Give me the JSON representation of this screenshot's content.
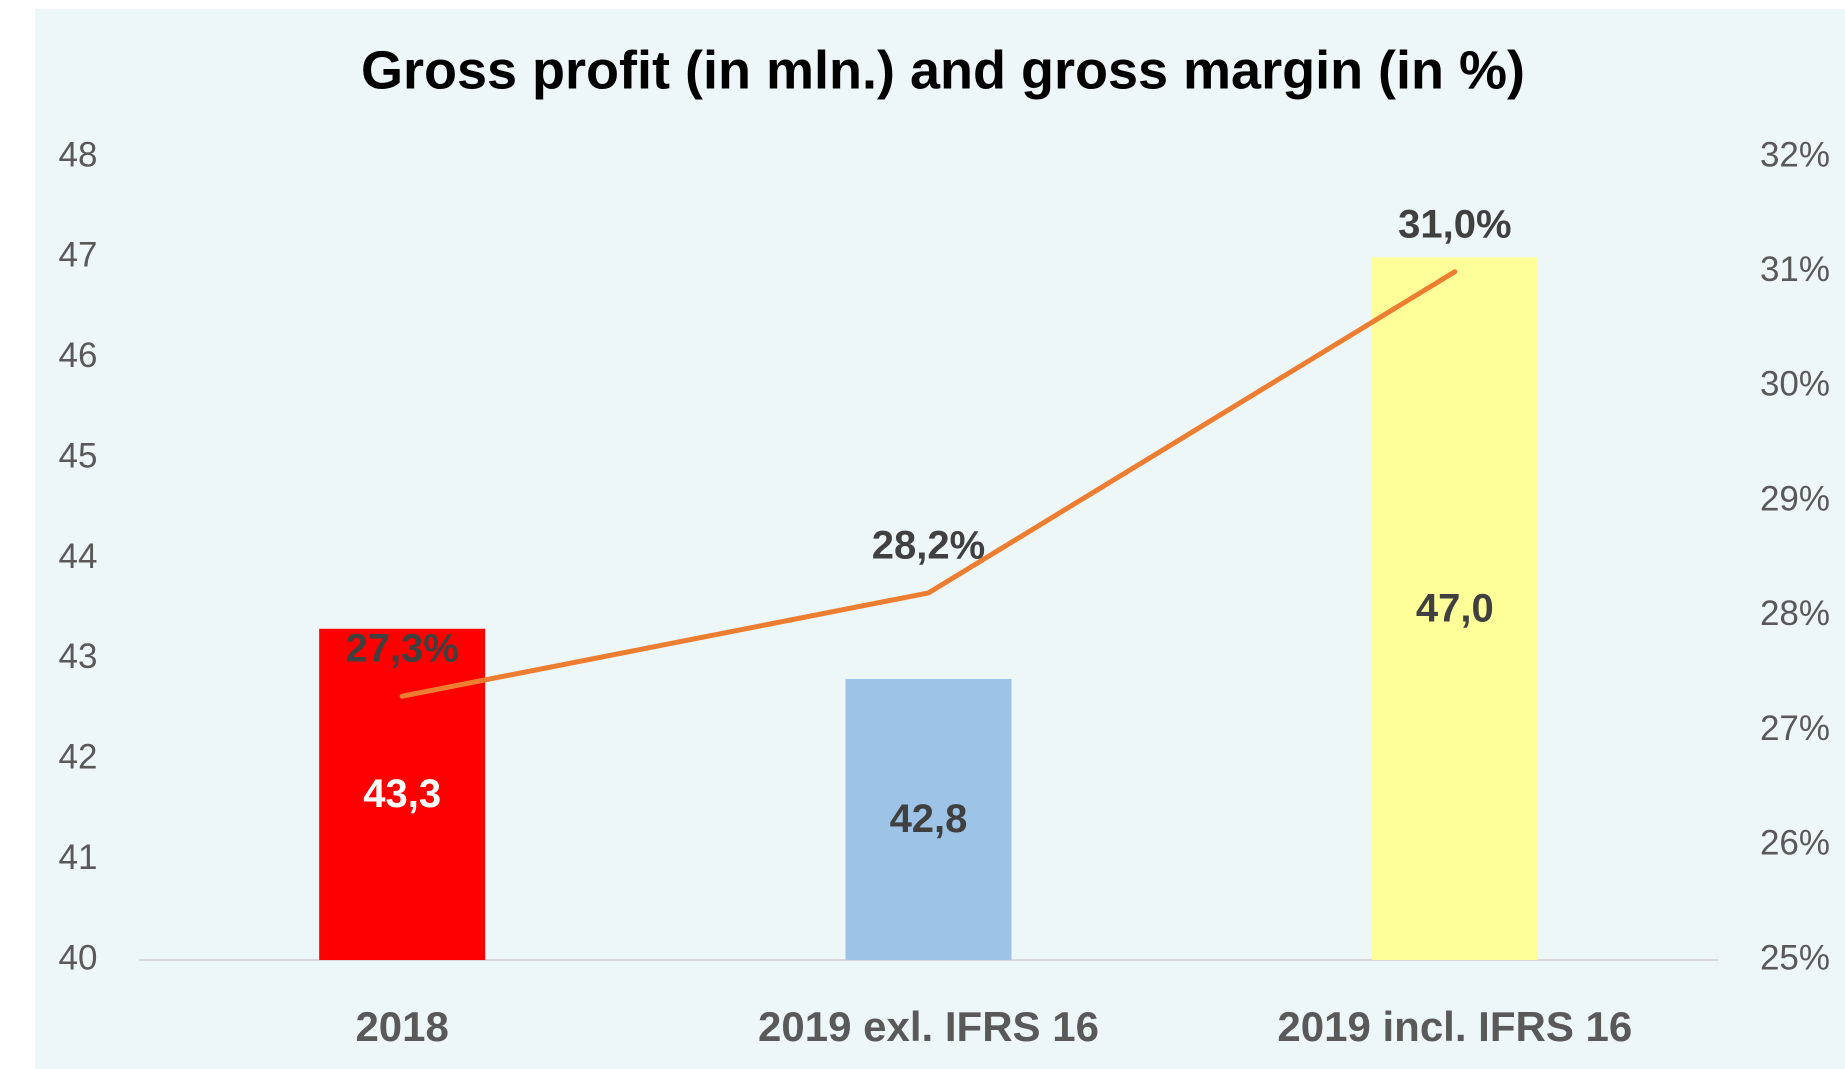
{
  "chart_data": {
    "type": "bar-line",
    "title": "Gross profit (in mln.) and gross margin (in %)",
    "categories": [
      "2018",
      "2019 exl. IFRS 16",
      "2019 incl. IFRS 16"
    ],
    "series": [
      {
        "type": "bar",
        "colors": [
          "#ff0000",
          "#9dc3e6",
          "#ffff99"
        ],
        "values": [
          43.3,
          42.8,
          47.0
        ],
        "value_labels": [
          "43,3",
          "42,8",
          "47,0"
        ],
        "value_label_colors": [
          "#ffffff",
          "#404040",
          "#404040"
        ]
      },
      {
        "type": "line",
        "axis": "y2",
        "color": "#ed7d31",
        "values": [
          27.3,
          28.2,
          31.0
        ],
        "value_labels": [
          "27,3%",
          "28,2%",
          "31,0%"
        ]
      }
    ],
    "ylim": [
      40,
      48
    ],
    "yticks": [
      40,
      41,
      42,
      43,
      44,
      45,
      46,
      47,
      48
    ],
    "y2lim": [
      25,
      32
    ],
    "y2ticks": [
      {
        "value": 25,
        "label": "25%"
      },
      {
        "value": 26,
        "label": "26%"
      },
      {
        "value": 27,
        "label": "27%"
      },
      {
        "value": 28,
        "label": "28%"
      },
      {
        "value": 29,
        "label": "29%"
      },
      {
        "value": 30,
        "label": "30%"
      },
      {
        "value": 31,
        "label": "31%"
      },
      {
        "value": 32,
        "label": "32%"
      }
    ]
  }
}
